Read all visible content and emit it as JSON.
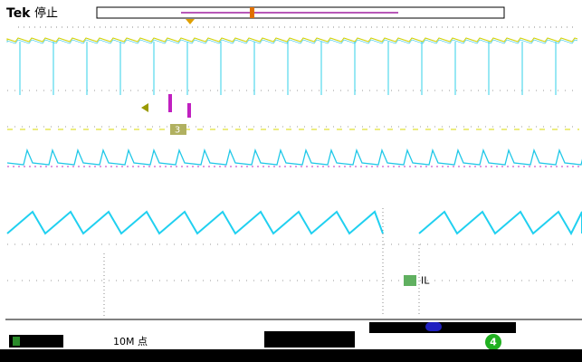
{
  "header": {
    "brand": "Tek",
    "status": "停止"
  },
  "markers": {
    "channel3": "3",
    "trace_label": "IL",
    "channel4": "4"
  },
  "footer": {
    "record": "10M 点"
  }
}
